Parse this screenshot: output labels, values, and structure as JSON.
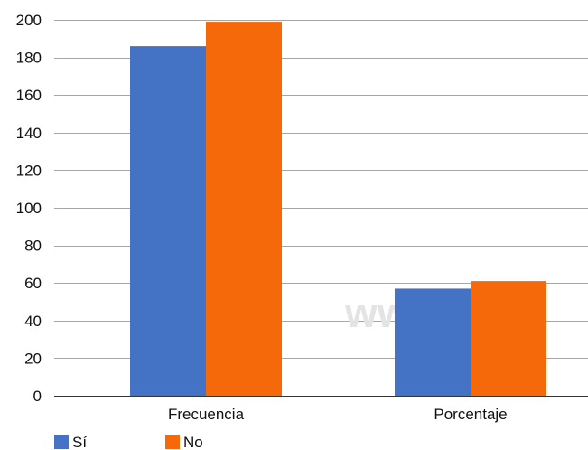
{
  "chart_data": {
    "type": "bar",
    "categories": [
      "Frecuencia",
      "Porcentaje"
    ],
    "series": [
      {
        "name": "Sí",
        "values": [
          186,
          57
        ],
        "color": "#4472c4"
      },
      {
        "name": "No",
        "values": [
          199,
          61
        ],
        "color": "#f5690a"
      }
    ],
    "title": "",
    "xlabel": "",
    "ylabel": "",
    "ylim": [
      0,
      200
    ],
    "yticks": [
      0,
      20,
      40,
      60,
      80,
      100,
      120,
      140,
      160,
      180,
      200
    ],
    "grid": true,
    "legend": "bottom-left"
  },
  "watermark": {
    "text": "www.            dig"
  }
}
